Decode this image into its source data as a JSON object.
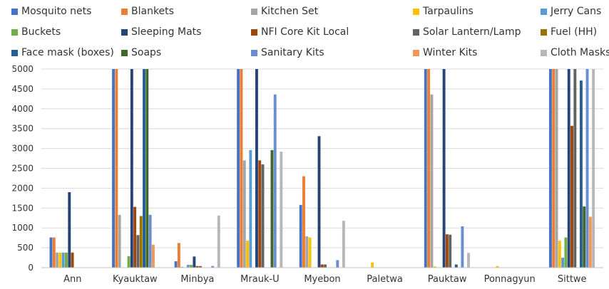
{
  "chart_data": {
    "type": "bar",
    "title": "",
    "xlabel": "",
    "ylabel": "",
    "ylim": [
      0,
      5000
    ],
    "yticks": [
      0,
      500,
      1000,
      1500,
      2000,
      2500,
      3000,
      3500,
      4000,
      4500,
      5000
    ],
    "grid": true,
    "legend": "top",
    "categories": [
      "Ann",
      "Kyauktaw",
      "Minbya",
      "Mrauk-U",
      "Myebon",
      "Paletwa",
      "Pauktaw",
      "Ponnagyun",
      "Sittwe"
    ],
    "series": [
      {
        "name": "Mosquito nets",
        "color": "#4472c4",
        "values": [
          760,
          5000,
          160,
          5000,
          1580,
          0,
          5000,
          0,
          5000
        ]
      },
      {
        "name": "Blankets",
        "color": "#ed7d31",
        "values": [
          760,
          5000,
          620,
          5000,
          2300,
          0,
          5000,
          0,
          5000
        ]
      },
      {
        "name": "Kitchen Set",
        "color": "#a5a5a5",
        "values": [
          380,
          1330,
          20,
          2700,
          790,
          0,
          4360,
          0,
          5000
        ]
      },
      {
        "name": "Tarpaulins",
        "color": "#ffc000",
        "values": [
          380,
          0,
          0,
          680,
          760,
          130,
          30,
          40,
          680
        ]
      },
      {
        "name": "Jerry Cans",
        "color": "#5b9bd5",
        "values": [
          380,
          0,
          70,
          2960,
          0,
          0,
          0,
          0,
          250
        ]
      },
      {
        "name": "Buckets",
        "color": "#70ad47",
        "values": [
          380,
          290,
          70,
          0,
          0,
          0,
          0,
          0,
          760
        ]
      },
      {
        "name": "Sleeping Mats",
        "color": "#264478",
        "values": [
          1900,
          5000,
          280,
          5000,
          3310,
          0,
          5000,
          0,
          5000
        ]
      },
      {
        "name": "NFI Core Kit Local",
        "color": "#9e480e",
        "values": [
          380,
          1530,
          40,
          2700,
          80,
          0,
          840,
          0,
          3570
        ]
      },
      {
        "name": "Solar Lantern/Lamp",
        "color": "#636363",
        "values": [
          0,
          820,
          40,
          2600,
          80,
          0,
          830,
          0,
          5000
        ]
      },
      {
        "name": "Fuel (HH)",
        "color": "#997300",
        "values": [
          0,
          1300,
          0,
          0,
          0,
          0,
          0,
          0,
          0
        ]
      },
      {
        "name": "Face mask (boxes)",
        "color": "#255e91",
        "values": [
          0,
          5000,
          0,
          0,
          0,
          0,
          80,
          0,
          4710
        ]
      },
      {
        "name": "Soaps",
        "color": "#43682b",
        "values": [
          0,
          5000,
          0,
          2960,
          0,
          0,
          0,
          0,
          1540
        ]
      },
      {
        "name": "Sanitary Kits",
        "color": "#698ed0",
        "values": [
          0,
          1330,
          40,
          4360,
          190,
          0,
          1040,
          0,
          5000
        ]
      },
      {
        "name": "Winter Kits",
        "color": "#f1975a",
        "values": [
          0,
          580,
          0,
          0,
          0,
          0,
          0,
          0,
          1280
        ]
      },
      {
        "name": "Cloth Masks",
        "color": "#b7b7b7",
        "values": [
          0,
          0,
          1310,
          2920,
          1180,
          0,
          370,
          0,
          5000
        ]
      }
    ]
  }
}
